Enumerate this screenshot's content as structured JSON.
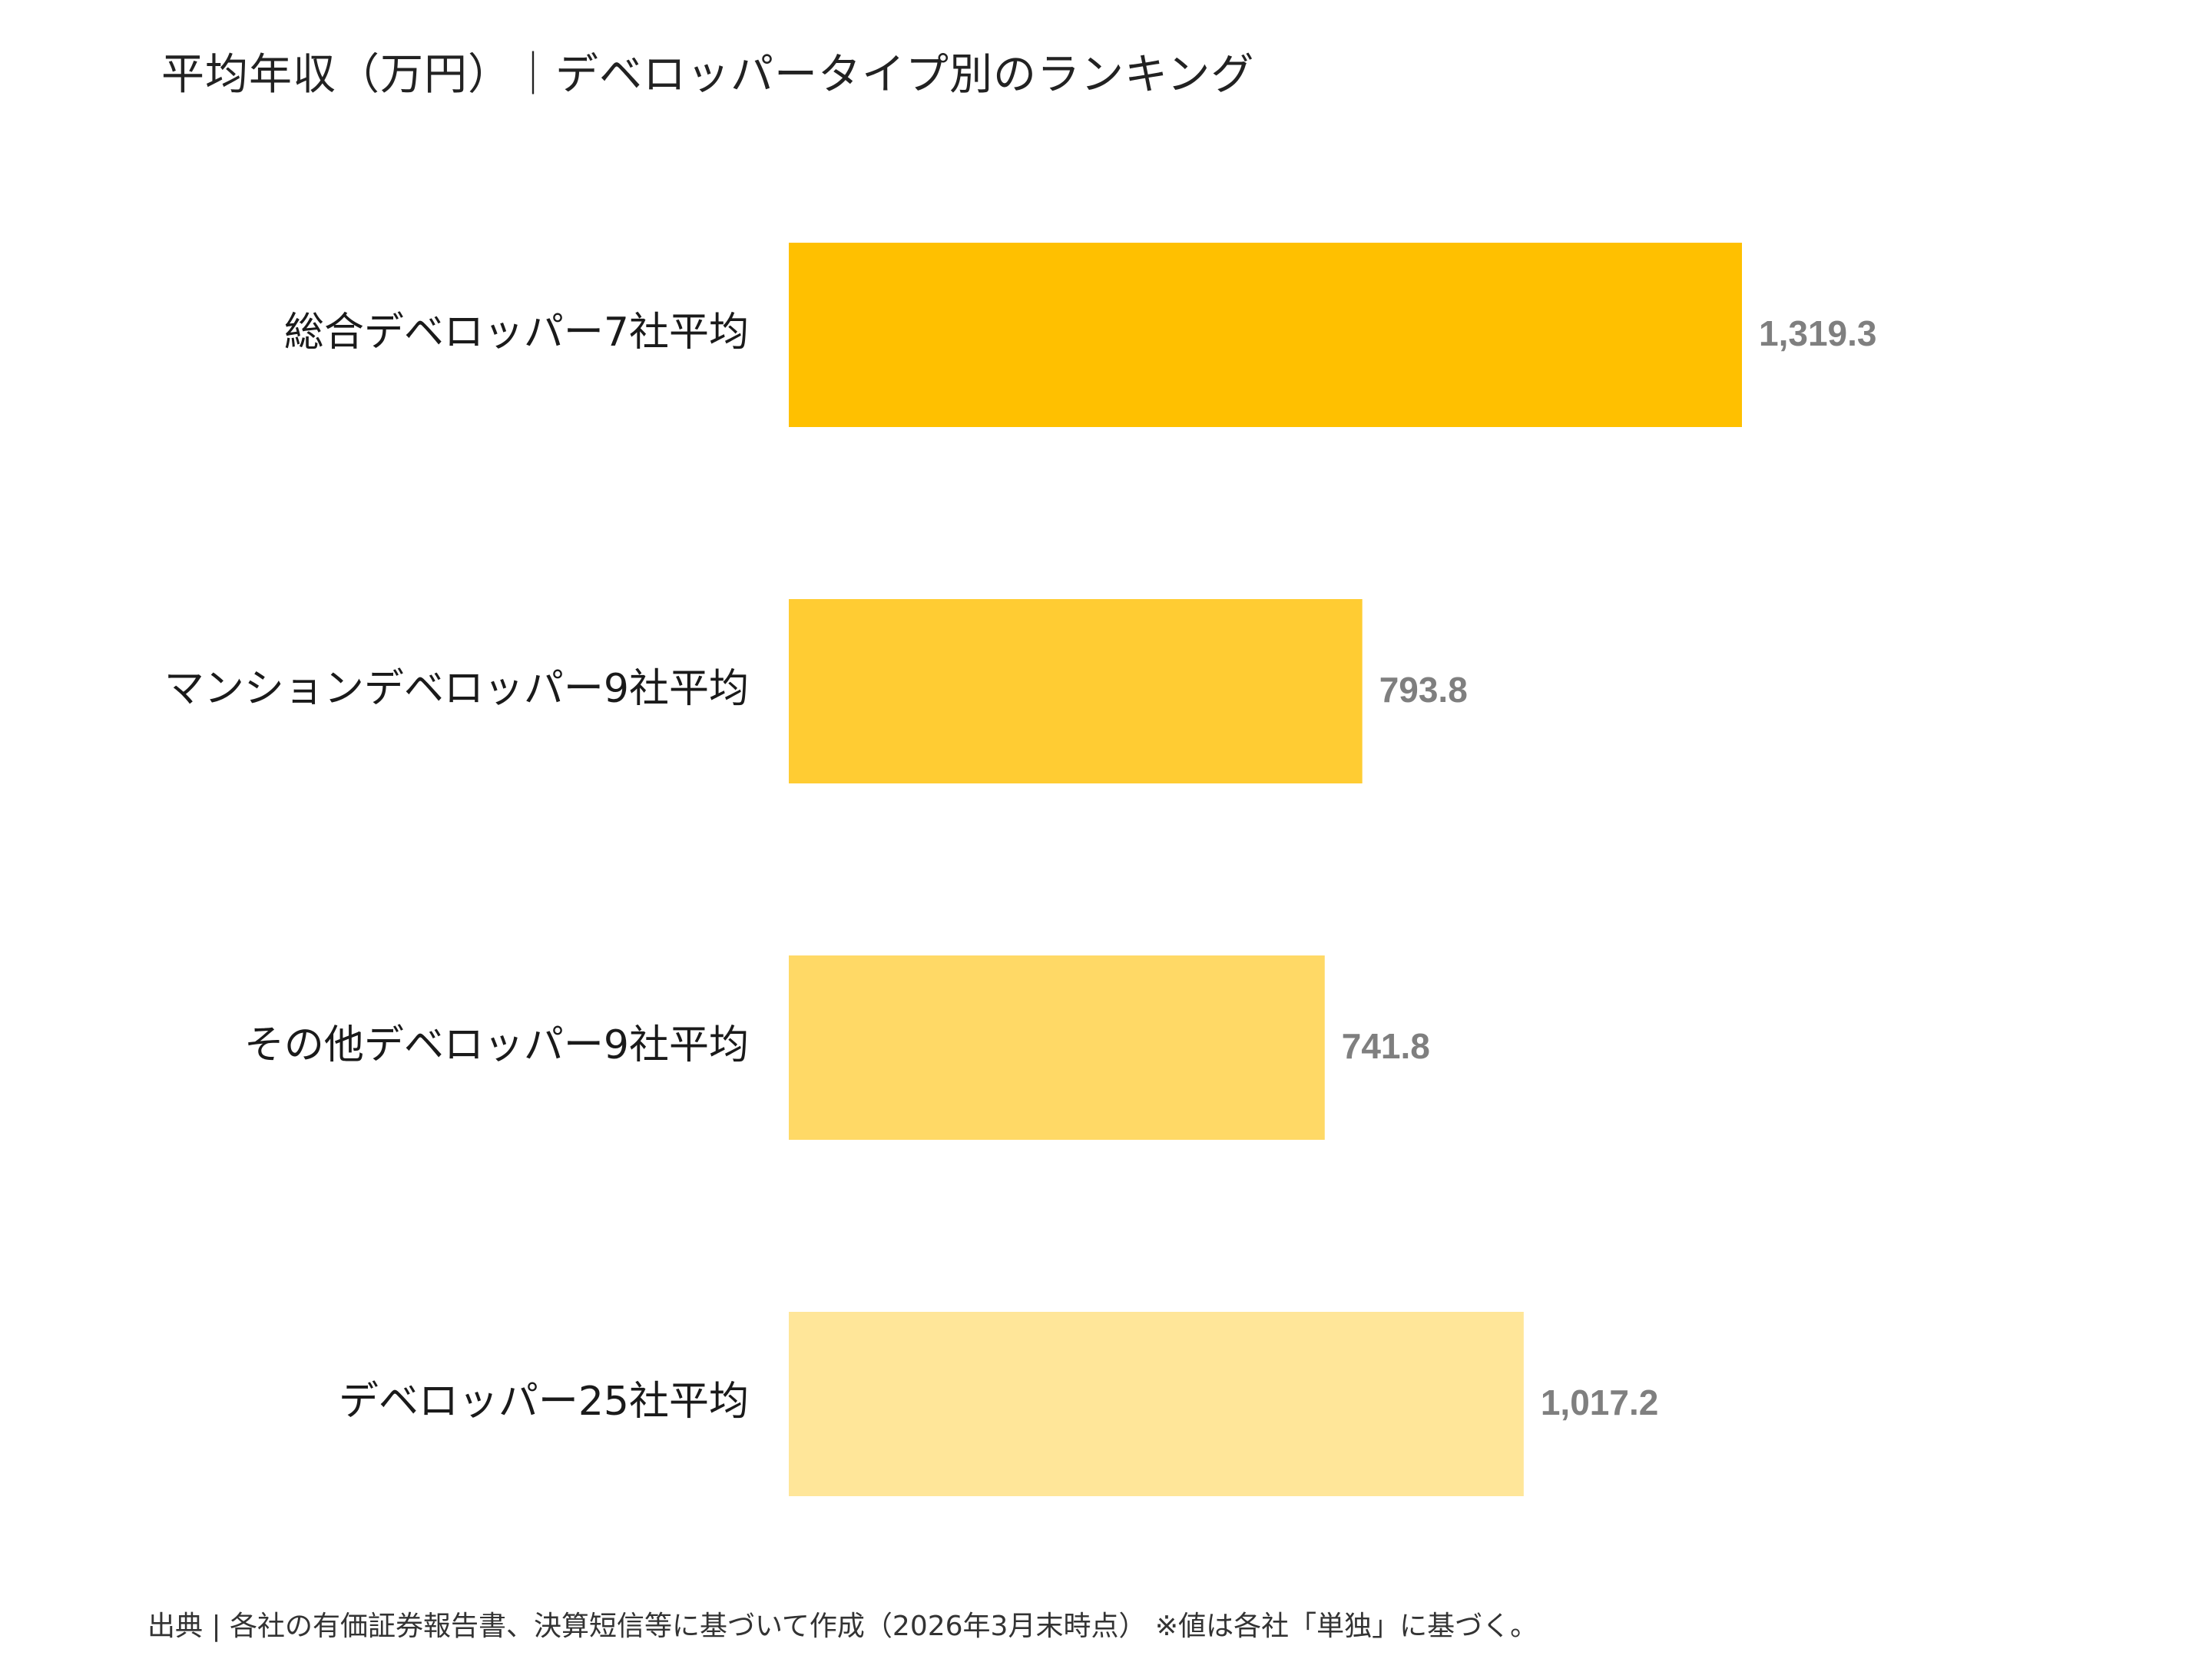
{
  "chart_data": {
    "type": "bar",
    "orientation": "horizontal",
    "title": "平均年収（万円）｜デベロッパータイプ別のランキング",
    "categories": [
      "総合デベロッパー7社平均",
      "マンションデベロッパー9社平均",
      "その他デベロッパー9社平均",
      "デベロッパー25社平均"
    ],
    "values": [
      1319.3,
      793.8,
      741.8,
      1017.2
    ],
    "value_labels": [
      "1,319.3",
      "793.8",
      "741.8",
      "1,017.2"
    ],
    "colors": [
      "#FFC000",
      "#FFCC33",
      "#FFD966",
      "#FFE699"
    ],
    "xlim": [
      0,
      2300
    ],
    "grid": false,
    "legend": "none"
  },
  "source_note": "出典 | 各社の有価証券報告書、決算短信等に基づいて作成（2026年3月末時点） ※値は各社「単独」に基づく。"
}
